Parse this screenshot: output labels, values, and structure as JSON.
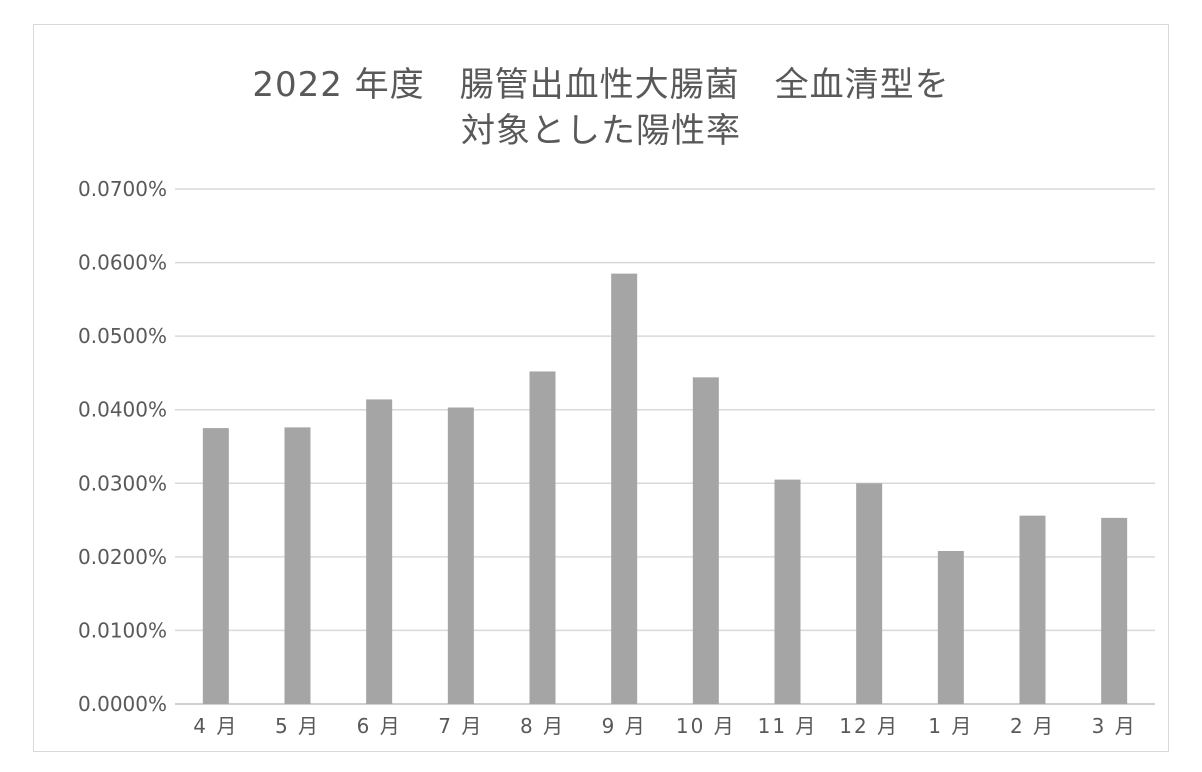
{
  "chart_data": {
    "type": "bar",
    "title_lines": [
      "2022 年度　腸管出血性大腸菌　全血清型を",
      "対象とした陽性率"
    ],
    "categories": [
      "4 月",
      "5 月",
      "6 月",
      "7 月",
      "8 月",
      "9 月",
      "10 月",
      "11 月",
      "12 月",
      "1 月",
      "2 月",
      "3 月"
    ],
    "values": [
      0.0375,
      0.0376,
      0.0414,
      0.0403,
      0.0452,
      0.0585,
      0.0444,
      0.0305,
      0.03,
      0.0208,
      0.0256,
      0.0253
    ],
    "value_unit": "%",
    "ylim": [
      0,
      0.07
    ],
    "y_ticks": [
      0,
      0.01,
      0.02,
      0.03,
      0.04,
      0.05,
      0.06,
      0.07
    ],
    "y_tick_labels": [
      "0.0000%",
      "0.0100%",
      "0.0200%",
      "0.0300%",
      "0.0400%",
      "0.0500%",
      "0.0600%",
      "0.0700%"
    ],
    "grid": true,
    "legend": "none",
    "bar_color": "#a5a5a5",
    "grid_color": "#d9d9d9",
    "text_color": "#595959"
  }
}
